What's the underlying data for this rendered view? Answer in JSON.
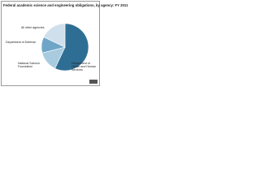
{
  "chart_data": {
    "type": "pie",
    "title": "Federal academic science and engineering obligations, by agency: FY 2011",
    "categories": [
      "Department of Health and Human Services",
      "National Science Foundation",
      "Department of Defense",
      "All other agencies"
    ],
    "values": [
      57,
      14,
      11,
      18
    ],
    "colors": [
      "#2f6e94",
      "#a8cbe0",
      "#6fa6c8",
      "#cfe0ec"
    ]
  }
}
